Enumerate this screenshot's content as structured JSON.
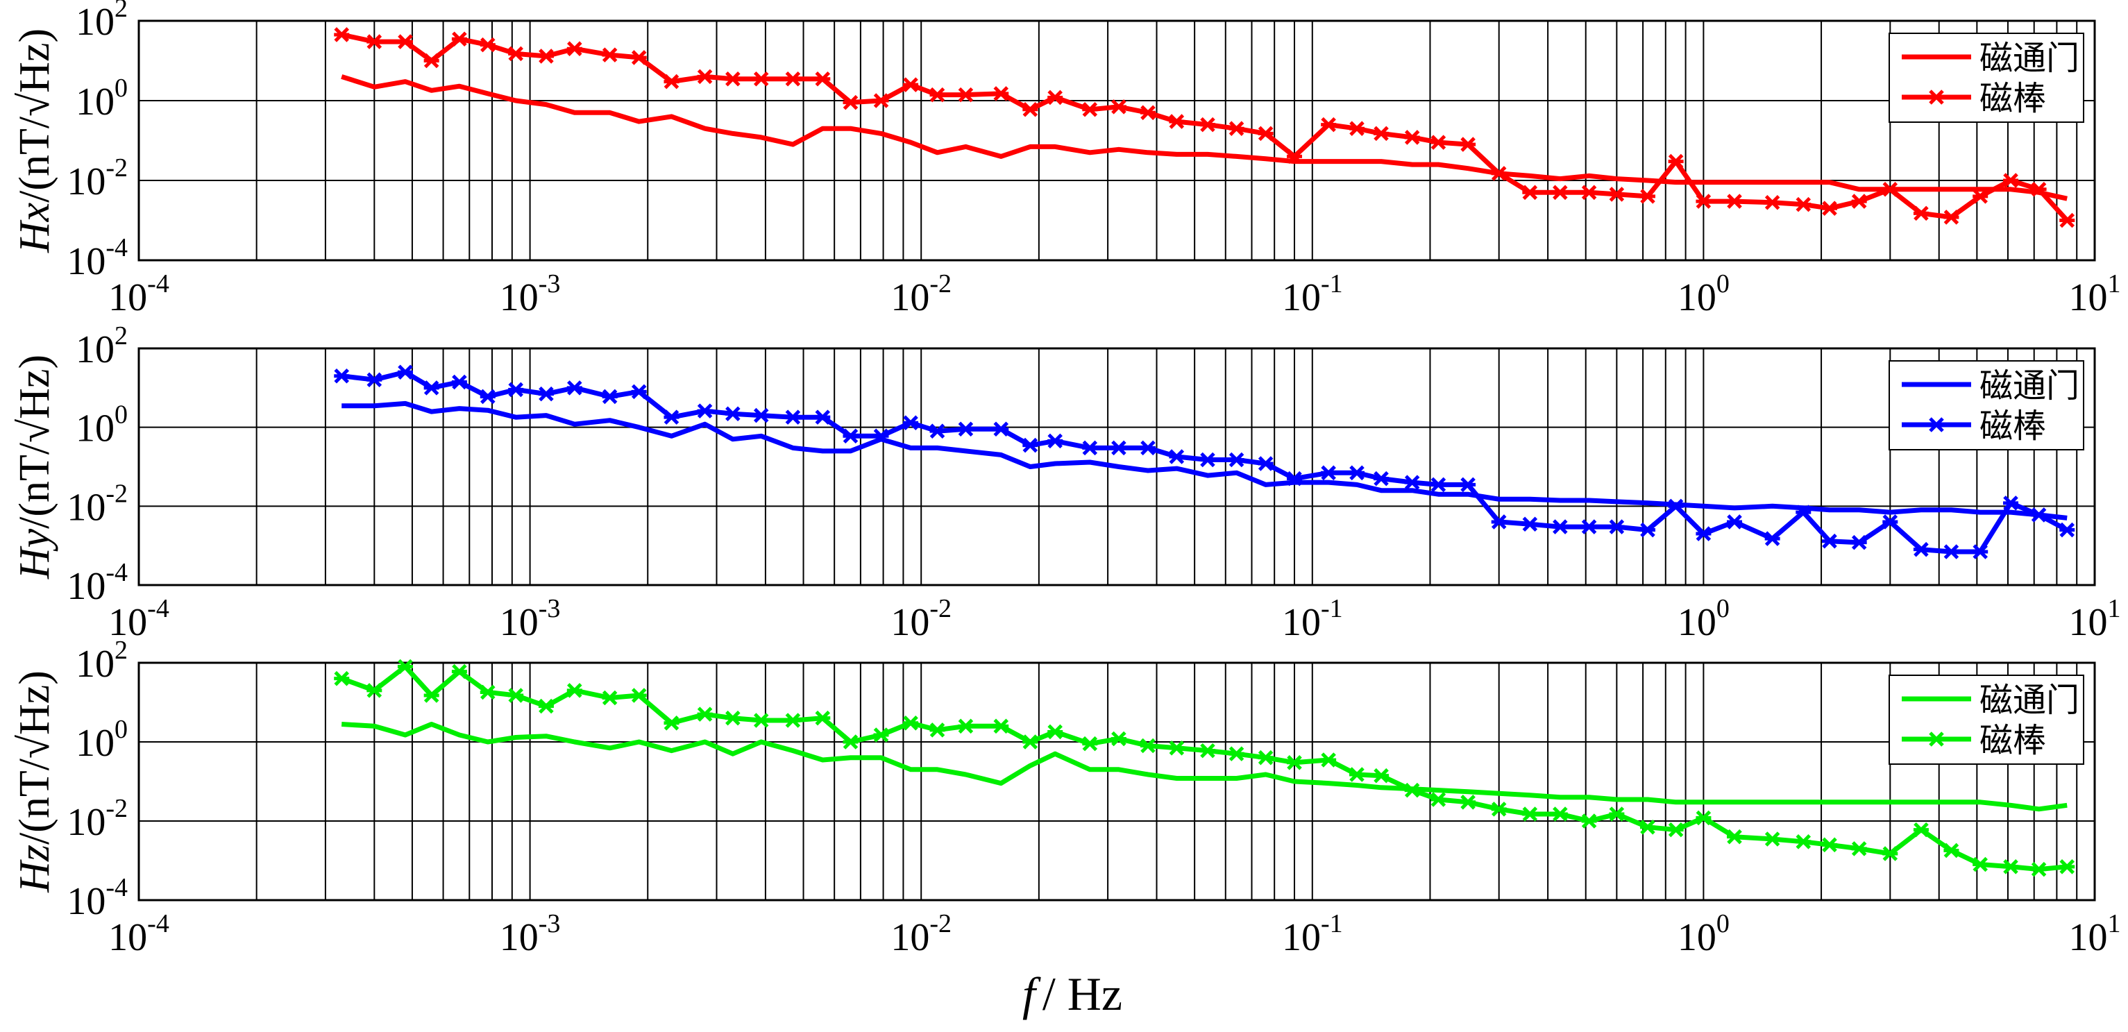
{
  "figure": {
    "xlabel_italic": "f",
    "xlabel_unit": "/ Hz"
  },
  "chart_data": [
    {
      "type": "line",
      "ylabel_italic": "Hx",
      "ylabel_unit": "/(nT/√Hz)",
      "xscale": "log",
      "yscale": "log",
      "xlim": [
        0.0001,
        10
      ],
      "ylim": [
        0.0001,
        100
      ],
      "xticks": [
        {
          "base": "10",
          "exp": "-4"
        },
        {
          "base": "10",
          "exp": "-3"
        },
        {
          "base": "10",
          "exp": "-2"
        },
        {
          "base": "10",
          "exp": "-1"
        },
        {
          "base": "10",
          "exp": "0"
        },
        {
          "base": "10",
          "exp": "1"
        }
      ],
      "yticks": [
        {
          "base": "10",
          "exp": "-4"
        },
        {
          "base": "10",
          "exp": "-2"
        },
        {
          "base": "10",
          "exp": "0"
        },
        {
          "base": "10",
          "exp": "2"
        }
      ],
      "grid": true,
      "legend_position": "top-right",
      "series": [
        {
          "name": "磁通门",
          "color": "#ff0000",
          "marker": "none",
          "x": [
            0.00033,
            0.0004,
            0.00048,
            0.00056,
            0.00066,
            0.00078,
            0.00092,
            0.0011,
            0.0013,
            0.0016,
            0.0019,
            0.0023,
            0.0028,
            0.0033,
            0.0039,
            0.0047,
            0.0056,
            0.0066,
            0.0079,
            0.0094,
            0.011,
            0.013,
            0.016,
            0.019,
            0.022,
            0.027,
            0.032,
            0.038,
            0.045,
            0.054,
            0.064,
            0.076,
            0.09,
            0.11,
            0.13,
            0.15,
            0.18,
            0.21,
            0.25,
            0.3,
            0.36,
            0.43,
            0.51,
            0.6,
            0.72,
            0.85,
            1.0,
            1.2,
            1.5,
            1.8,
            2.1,
            2.5,
            3.0,
            3.6,
            4.3,
            5.1,
            6.1,
            7.2,
            8.5
          ],
          "y": [
            4,
            2.2,
            3,
            1.8,
            2.3,
            1.5,
            1,
            0.8,
            0.5,
            0.5,
            0.3,
            0.4,
            0.2,
            0.15,
            0.12,
            0.08,
            0.2,
            0.2,
            0.15,
            0.09,
            0.05,
            0.07,
            0.04,
            0.07,
            0.07,
            0.05,
            0.06,
            0.05,
            0.045,
            0.045,
            0.04,
            0.035,
            0.03,
            0.03,
            0.03,
            0.03,
            0.025,
            0.025,
            0.02,
            0.015,
            0.013,
            0.011,
            0.013,
            0.011,
            0.01,
            0.009,
            0.009,
            0.009,
            0.009,
            0.009,
            0.009,
            0.006,
            0.006,
            0.006,
            0.006,
            0.006,
            0.006,
            0.005,
            0.0035
          ]
        },
        {
          "name": "磁棒",
          "color": "#ff0000",
          "marker": "x",
          "x": [
            0.00033,
            0.0004,
            0.00048,
            0.00056,
            0.00066,
            0.00078,
            0.00092,
            0.0011,
            0.0013,
            0.0016,
            0.0019,
            0.0023,
            0.0028,
            0.0033,
            0.0039,
            0.0047,
            0.0056,
            0.0066,
            0.0079,
            0.0094,
            0.011,
            0.013,
            0.016,
            0.019,
            0.022,
            0.027,
            0.032,
            0.038,
            0.045,
            0.054,
            0.064,
            0.076,
            0.09,
            0.11,
            0.13,
            0.15,
            0.18,
            0.21,
            0.25,
            0.3,
            0.36,
            0.43,
            0.51,
            0.6,
            0.72,
            0.85,
            1.0,
            1.2,
            1.5,
            1.8,
            2.1,
            2.5,
            3.0,
            3.6,
            4.3,
            5.1,
            6.1,
            7.2,
            8.5
          ],
          "y": [
            45,
            30,
            30,
            10,
            35,
            25,
            15,
            13,
            20,
            14,
            12,
            3,
            4,
            3.5,
            3.5,
            3.5,
            3.5,
            0.9,
            1,
            2.5,
            1.4,
            1.4,
            1.5,
            0.6,
            1.2,
            0.6,
            0.7,
            0.5,
            0.3,
            0.25,
            0.2,
            0.15,
            0.04,
            0.25,
            0.2,
            0.15,
            0.12,
            0.09,
            0.08,
            0.015,
            0.005,
            0.005,
            0.005,
            0.0045,
            0.004,
            0.03,
            0.003,
            0.003,
            0.0028,
            0.0025,
            0.002,
            0.003,
            0.006,
            0.0015,
            0.0012,
            0.004,
            0.01,
            0.006,
            0.001
          ]
        }
      ]
    },
    {
      "type": "line",
      "ylabel_italic": "Hy",
      "ylabel_unit": "/(nT/√Hz)",
      "xscale": "log",
      "yscale": "log",
      "xlim": [
        0.0001,
        10
      ],
      "ylim": [
        0.0001,
        100
      ],
      "xticks": [
        {
          "base": "10",
          "exp": "-4"
        },
        {
          "base": "10",
          "exp": "-3"
        },
        {
          "base": "10",
          "exp": "-2"
        },
        {
          "base": "10",
          "exp": "-1"
        },
        {
          "base": "10",
          "exp": "0"
        },
        {
          "base": "10",
          "exp": "1"
        }
      ],
      "yticks": [
        {
          "base": "10",
          "exp": "-4"
        },
        {
          "base": "10",
          "exp": "-2"
        },
        {
          "base": "10",
          "exp": "0"
        },
        {
          "base": "10",
          "exp": "2"
        }
      ],
      "grid": true,
      "legend_position": "top-right",
      "series": [
        {
          "name": "磁通门",
          "color": "#0000ff",
          "marker": "none",
          "x": [
            0.00033,
            0.0004,
            0.00048,
            0.00056,
            0.00066,
            0.00078,
            0.00092,
            0.0011,
            0.0013,
            0.0016,
            0.0019,
            0.0023,
            0.0028,
            0.0033,
            0.0039,
            0.0047,
            0.0056,
            0.0066,
            0.0079,
            0.0094,
            0.011,
            0.013,
            0.016,
            0.019,
            0.022,
            0.027,
            0.032,
            0.038,
            0.045,
            0.054,
            0.064,
            0.076,
            0.09,
            0.11,
            0.13,
            0.15,
            0.18,
            0.21,
            0.25,
            0.3,
            0.36,
            0.43,
            0.51,
            0.6,
            0.72,
            0.85,
            1.0,
            1.2,
            1.5,
            1.8,
            2.1,
            2.5,
            3.0,
            3.6,
            4.3,
            5.1,
            6.1,
            7.2,
            8.5
          ],
          "y": [
            3.5,
            3.5,
            4,
            2.5,
            3,
            2.7,
            1.8,
            2,
            1.2,
            1.5,
            1,
            0.6,
            1.2,
            0.5,
            0.6,
            0.3,
            0.25,
            0.25,
            0.5,
            0.3,
            0.3,
            0.25,
            0.2,
            0.1,
            0.12,
            0.13,
            0.1,
            0.08,
            0.09,
            0.06,
            0.07,
            0.035,
            0.04,
            0.04,
            0.035,
            0.025,
            0.025,
            0.02,
            0.02,
            0.015,
            0.015,
            0.014,
            0.014,
            0.013,
            0.012,
            0.011,
            0.01,
            0.009,
            0.01,
            0.009,
            0.008,
            0.008,
            0.007,
            0.008,
            0.008,
            0.007,
            0.007,
            0.006,
            0.005
          ]
        },
        {
          "name": "磁棒",
          "color": "#0000ff",
          "marker": "x",
          "x": [
            0.00033,
            0.0004,
            0.00048,
            0.00056,
            0.00066,
            0.00078,
            0.00092,
            0.0011,
            0.0013,
            0.0016,
            0.0019,
            0.0023,
            0.0028,
            0.0033,
            0.0039,
            0.0047,
            0.0056,
            0.0066,
            0.0079,
            0.0094,
            0.011,
            0.013,
            0.016,
            0.019,
            0.022,
            0.027,
            0.032,
            0.038,
            0.045,
            0.054,
            0.064,
            0.076,
            0.09,
            0.11,
            0.13,
            0.15,
            0.18,
            0.21,
            0.25,
            0.3,
            0.36,
            0.43,
            0.51,
            0.6,
            0.72,
            0.85,
            1.0,
            1.2,
            1.5,
            1.8,
            2.1,
            2.5,
            3.0,
            3.6,
            4.3,
            5.1,
            6.1,
            7.2,
            8.5
          ],
          "y": [
            20,
            16,
            25,
            10,
            14,
            6,
            9,
            7,
            10,
            6,
            8,
            1.8,
            2.6,
            2.2,
            2,
            1.8,
            1.8,
            0.6,
            0.6,
            1.3,
            0.8,
            0.9,
            0.9,
            0.35,
            0.45,
            0.3,
            0.3,
            0.3,
            0.18,
            0.15,
            0.15,
            0.12,
            0.05,
            0.07,
            0.07,
            0.05,
            0.04,
            0.035,
            0.035,
            0.004,
            0.0035,
            0.003,
            0.003,
            0.003,
            0.0025,
            0.01,
            0.002,
            0.004,
            0.0015,
            0.007,
            0.0013,
            0.0012,
            0.004,
            0.0008,
            0.0007,
            0.0007,
            0.012,
            0.006,
            0.0025
          ]
        }
      ]
    },
    {
      "type": "line",
      "ylabel_italic": "Hz",
      "ylabel_unit": "/(nT/√Hz)",
      "xscale": "log",
      "yscale": "log",
      "xlim": [
        0.0001,
        10
      ],
      "ylim": [
        0.0001,
        100
      ],
      "xticks": [
        {
          "base": "10",
          "exp": "-4"
        },
        {
          "base": "10",
          "exp": "-3"
        },
        {
          "base": "10",
          "exp": "-2"
        },
        {
          "base": "10",
          "exp": "-1"
        },
        {
          "base": "10",
          "exp": "0"
        },
        {
          "base": "10",
          "exp": "1"
        }
      ],
      "yticks": [
        {
          "base": "10",
          "exp": "-4"
        },
        {
          "base": "10",
          "exp": "-2"
        },
        {
          "base": "10",
          "exp": "0"
        },
        {
          "base": "10",
          "exp": "2"
        }
      ],
      "grid": true,
      "legend_position": "top-right",
      "series": [
        {
          "name": "磁通门",
          "color": "#00ee00",
          "marker": "none",
          "x": [
            0.00033,
            0.0004,
            0.00048,
            0.00056,
            0.00066,
            0.00078,
            0.00092,
            0.0011,
            0.0013,
            0.0016,
            0.0019,
            0.0023,
            0.0028,
            0.0033,
            0.0039,
            0.0047,
            0.0056,
            0.0066,
            0.0079,
            0.0094,
            0.011,
            0.013,
            0.016,
            0.019,
            0.022,
            0.027,
            0.032,
            0.038,
            0.045,
            0.054,
            0.064,
            0.076,
            0.09,
            0.11,
            0.13,
            0.15,
            0.18,
            0.21,
            0.25,
            0.3,
            0.36,
            0.43,
            0.51,
            0.6,
            0.72,
            0.85,
            1.0,
            1.2,
            1.5,
            1.8,
            2.1,
            2.5,
            3.0,
            3.6,
            4.3,
            5.1,
            6.1,
            7.2,
            8.5
          ],
          "y": [
            2.8,
            2.5,
            1.5,
            2.8,
            1.5,
            1,
            1.3,
            1.4,
            1,
            0.7,
            1,
            0.6,
            1,
            0.5,
            1,
            0.6,
            0.35,
            0.4,
            0.4,
            0.2,
            0.2,
            0.15,
            0.09,
            0.25,
            0.5,
            0.2,
            0.2,
            0.15,
            0.12,
            0.12,
            0.12,
            0.15,
            0.1,
            0.09,
            0.08,
            0.07,
            0.065,
            0.06,
            0.055,
            0.05,
            0.045,
            0.04,
            0.04,
            0.035,
            0.035,
            0.03,
            0.03,
            0.03,
            0.03,
            0.03,
            0.03,
            0.03,
            0.03,
            0.03,
            0.03,
            0.03,
            0.025,
            0.02,
            0.025
          ]
        },
        {
          "name": "磁棒",
          "color": "#00ee00",
          "marker": "x",
          "x": [
            0.00033,
            0.0004,
            0.00048,
            0.00056,
            0.00066,
            0.00078,
            0.00092,
            0.0011,
            0.0013,
            0.0016,
            0.0019,
            0.0023,
            0.0028,
            0.0033,
            0.0039,
            0.0047,
            0.0056,
            0.0066,
            0.0079,
            0.0094,
            0.011,
            0.013,
            0.016,
            0.019,
            0.022,
            0.027,
            0.032,
            0.038,
            0.045,
            0.054,
            0.064,
            0.076,
            0.09,
            0.11,
            0.13,
            0.15,
            0.18,
            0.21,
            0.25,
            0.3,
            0.36,
            0.43,
            0.51,
            0.6,
            0.72,
            0.85,
            1.0,
            1.2,
            1.5,
            1.8,
            2.1,
            2.5,
            3.0,
            3.6,
            4.3,
            5.1,
            6.1,
            7.2,
            8.5
          ],
          "y": [
            40,
            20,
            80,
            15,
            60,
            18,
            15,
            8,
            20,
            13,
            15,
            3,
            5,
            4,
            3.5,
            3.5,
            4,
            1,
            1.5,
            3,
            2,
            2.5,
            2.5,
            1,
            1.8,
            0.9,
            1.2,
            0.8,
            0.7,
            0.6,
            0.5,
            0.4,
            0.3,
            0.35,
            0.15,
            0.14,
            0.06,
            0.035,
            0.03,
            0.02,
            0.015,
            0.015,
            0.01,
            0.015,
            0.007,
            0.006,
            0.012,
            0.004,
            0.0035,
            0.003,
            0.0025,
            0.002,
            0.0015,
            0.006,
            0.0018,
            0.0008,
            0.0007,
            0.0006,
            0.0007
          ]
        }
      ]
    }
  ]
}
